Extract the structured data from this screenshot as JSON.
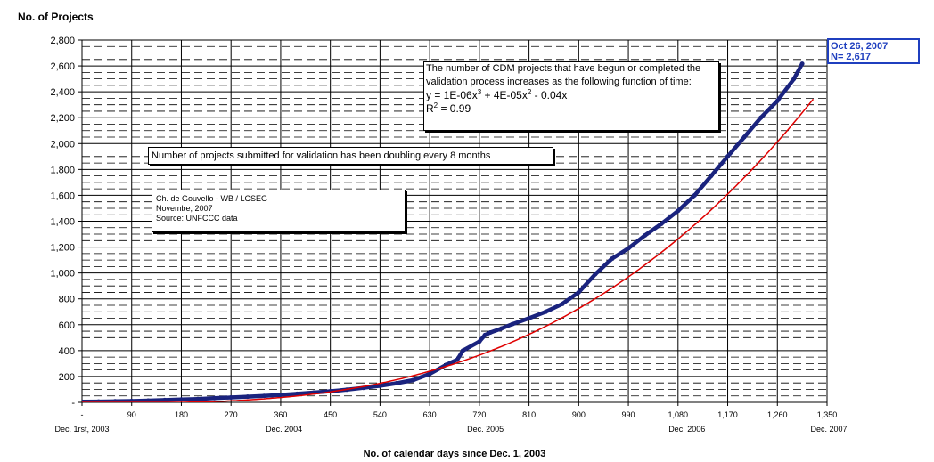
{
  "chart_data": {
    "type": "line",
    "ylabel": "No. of Projects",
    "xlabel": "No. of calendar days since Dec. 1, 2003",
    "xlim": [
      0,
      1350
    ],
    "ylim": [
      0,
      2800
    ],
    "x_ticks": [
      "-",
      "90",
      "180",
      "270",
      "360",
      "450",
      "540",
      "630",
      "720",
      "810",
      "900",
      "990",
      "1,080",
      "1,170",
      "1,260",
      "1,350"
    ],
    "y_ticks": [
      "-",
      "200",
      "400",
      "600",
      "800",
      "1,000",
      "1,200",
      "1,400",
      "1,600",
      "1,800",
      "2,000",
      "2,200",
      "2,400",
      "2,600",
      "2,800"
    ],
    "date_labels": [
      {
        "x": 0,
        "label": "Dec. 1rst, 2003"
      },
      {
        "x": 366,
        "label": "Dec. 2004"
      },
      {
        "x": 731,
        "label": "Dec. 2005"
      },
      {
        "x": 1096,
        "label": "Dec. 2006"
      },
      {
        "x": 1461,
        "label": "Dec. 2007"
      }
    ],
    "grid": true,
    "series": [
      {
        "type": "observed",
        "color": "#1a237e",
        "x": [
          0,
          30,
          60,
          90,
          120,
          150,
          180,
          210,
          240,
          270,
          300,
          330,
          360,
          390,
          420,
          450,
          480,
          510,
          540,
          570,
          600,
          630,
          660,
          680,
          690,
          720,
          730,
          740,
          760,
          780,
          810,
          840,
          870,
          900,
          930,
          960,
          990,
          1020,
          1050,
          1080,
          1110,
          1140,
          1170,
          1200,
          1230,
          1260,
          1290,
          1305
        ],
        "y": [
          5,
          6,
          8,
          10,
          14,
          18,
          22,
          26,
          32,
          38,
          44,
          50,
          58,
          66,
          76,
          86,
          98,
          112,
          128,
          148,
          172,
          220,
          290,
          330,
          400,
          470,
          520,
          540,
          570,
          605,
          650,
          700,
          760,
          850,
          990,
          1110,
          1190,
          1290,
          1380,
          1480,
          1600,
          1750,
          1900,
          2050,
          2200,
          2330,
          2500,
          2617
        ]
      },
      {
        "type": "trend",
        "color": "#e00000",
        "equation": {
          "a3": 1e-06,
          "a2": 4e-05,
          "a1": -0.04
        },
        "x_from": 0,
        "x_to": 1325
      }
    ],
    "annotations": {
      "equation": {
        "line1": "The number of CDM projects that have begun or completed the",
        "line2": "validation process increases as the following function of time:",
        "formula_a": "y = 1E-06x",
        "exp_a": "3",
        "formula_b": " + 4E-05x",
        "exp_b": "2",
        "formula_c": " - 0.04x",
        "r2_a": "R",
        "r2_exp": "2",
        "r2_b": " = 0.99"
      },
      "doubling": "Number of projects submitted for validation has been doubling every 8 months",
      "author": {
        "line1": "Ch. de Gouvello - WB / LCSEG",
        "line2": "Novembe, 2007",
        "line3": "Source: UNFCCC data"
      },
      "last_point": {
        "date": "Oct 26, 2007",
        "count": "N= 2,617"
      }
    }
  }
}
